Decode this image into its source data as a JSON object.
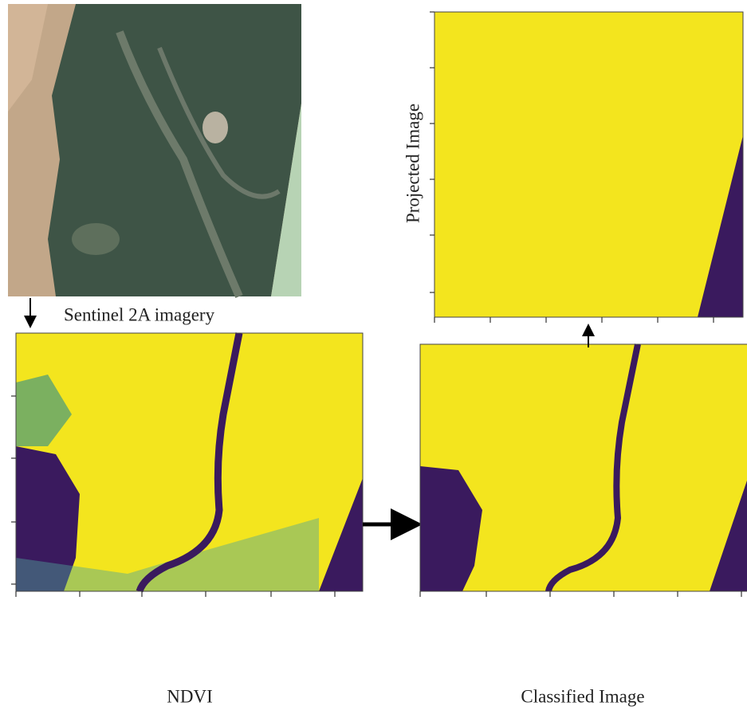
{
  "labels": {
    "sentinel": "Sentinel 2A imagery",
    "ndvi": "NDVI",
    "projected": "Projected Image",
    "classified": "Classified Image"
  }
}
